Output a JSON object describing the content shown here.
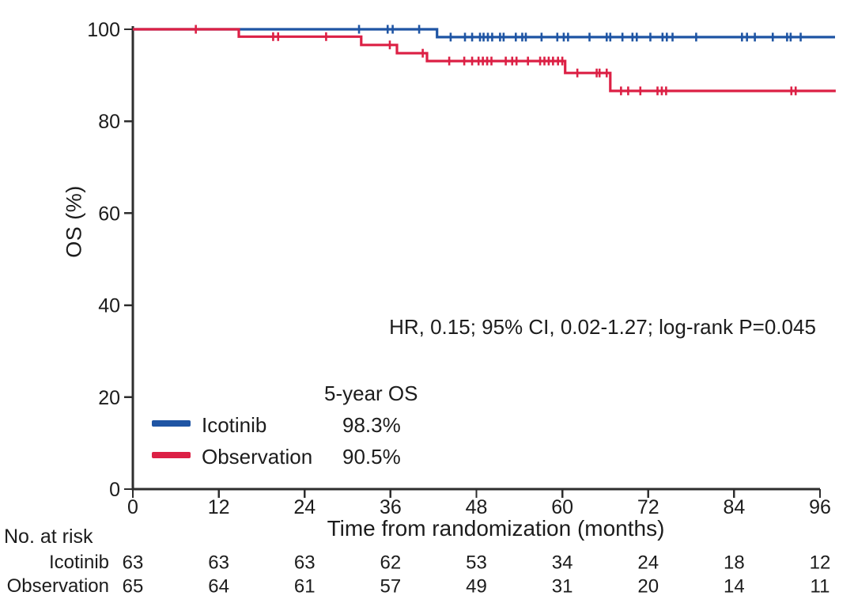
{
  "chart_data": {
    "type": "line",
    "subtype": "kaplan-meier-step-curve",
    "title": "",
    "xlabel": "Time from randomization (months)",
    "ylabel": "OS (%)",
    "xlim": [
      0,
      96
    ],
    "ylim": [
      0,
      100
    ],
    "x_ticks": [
      0,
      12,
      24,
      36,
      48,
      60,
      72,
      84,
      96
    ],
    "y_ticks": [
      0,
      20,
      40,
      60,
      80,
      100
    ],
    "grid": false,
    "annotation": "HR, 0.15; 95% CI, 0.02-1.27; log-rank P=0.045",
    "legend": {
      "position": "lower-left",
      "header": "5-year OS",
      "items": [
        {
          "name": "Icotinib",
          "value": "98.3%",
          "color": "#1f55a4"
        },
        {
          "name": "Observation",
          "value": "90.5%",
          "color": "#dc2045"
        }
      ]
    },
    "series": [
      {
        "name": "Icotinib",
        "color": "#1f55a4",
        "steps": [
          [
            0,
            100
          ],
          [
            42.5,
            100
          ],
          [
            42.5,
            98.3
          ],
          [
            98.1,
            98.3
          ]
        ],
        "censors": [
          [
            31.6,
            100
          ],
          [
            35.6,
            100
          ],
          [
            36.3,
            100
          ],
          [
            40.0,
            100
          ],
          [
            44.4,
            98.3
          ],
          [
            46.4,
            98.3
          ],
          [
            47.4,
            98.3
          ],
          [
            48.5,
            98.3
          ],
          [
            49.0,
            98.3
          ],
          [
            49.6,
            98.3
          ],
          [
            50.2,
            98.3
          ],
          [
            51.3,
            98.3
          ],
          [
            51.8,
            98.3
          ],
          [
            53.5,
            98.3
          ],
          [
            54.4,
            98.3
          ],
          [
            54.9,
            98.3
          ],
          [
            57.1,
            98.3
          ],
          [
            59.3,
            98.3
          ],
          [
            60.2,
            98.3
          ],
          [
            60.8,
            98.3
          ],
          [
            63.8,
            98.3
          ],
          [
            66.2,
            98.3
          ],
          [
            66.7,
            98.3
          ],
          [
            68.4,
            98.3
          ],
          [
            69.8,
            98.3
          ],
          [
            70.4,
            98.3
          ],
          [
            72.3,
            98.3
          ],
          [
            74.0,
            98.3
          ],
          [
            74.6,
            98.3
          ],
          [
            75.4,
            98.3
          ],
          [
            78.7,
            98.3
          ],
          [
            85.1,
            98.3
          ],
          [
            85.8,
            98.3
          ],
          [
            86.9,
            98.3
          ],
          [
            89.4,
            98.3
          ],
          [
            91.4,
            98.3
          ],
          [
            91.9,
            98.3
          ],
          [
            93.3,
            98.3
          ]
        ]
      },
      {
        "name": "Observation",
        "color": "#dc2045",
        "steps": [
          [
            0,
            100
          ],
          [
            14.8,
            100
          ],
          [
            14.8,
            98.4
          ],
          [
            31.9,
            98.4
          ],
          [
            31.9,
            96.6
          ],
          [
            36.9,
            96.6
          ],
          [
            36.9,
            94.8
          ],
          [
            41.1,
            94.8
          ],
          [
            41.1,
            93.1
          ],
          [
            60.4,
            93.1
          ],
          [
            60.4,
            90.5
          ],
          [
            66.7,
            90.5
          ],
          [
            66.7,
            86.6
          ],
          [
            98.2,
            86.6
          ]
        ],
        "censors": [
          [
            8.8,
            100
          ],
          [
            19.6,
            98.4
          ],
          [
            20.3,
            98.4
          ],
          [
            27.0,
            98.4
          ],
          [
            35.9,
            96.6
          ],
          [
            40.5,
            94.8
          ],
          [
            44.2,
            93.1
          ],
          [
            46.3,
            93.1
          ],
          [
            47.4,
            93.1
          ],
          [
            48.3,
            93.1
          ],
          [
            48.9,
            93.1
          ],
          [
            49.5,
            93.1
          ],
          [
            50.1,
            93.1
          ],
          [
            52.1,
            93.1
          ],
          [
            53.0,
            93.1
          ],
          [
            53.6,
            93.1
          ],
          [
            55.2,
            93.1
          ],
          [
            56.9,
            93.1
          ],
          [
            57.5,
            93.1
          ],
          [
            58.1,
            93.1
          ],
          [
            58.7,
            93.1
          ],
          [
            59.4,
            93.1
          ],
          [
            60.0,
            93.1
          ],
          [
            62.1,
            90.5
          ],
          [
            64.8,
            90.5
          ],
          [
            65.2,
            90.5
          ],
          [
            66.2,
            90.5
          ],
          [
            68.2,
            86.6
          ],
          [
            69.2,
            86.6
          ],
          [
            70.9,
            86.6
          ],
          [
            73.3,
            86.6
          ],
          [
            73.9,
            86.6
          ],
          [
            74.5,
            86.6
          ],
          [
            92.0,
            86.6
          ],
          [
            92.6,
            86.6
          ]
        ]
      }
    ],
    "risk_table": {
      "title": "No. at risk",
      "rows": [
        {
          "label": "Icotinib",
          "values": [
            63,
            63,
            63,
            62,
            53,
            34,
            24,
            18,
            12
          ]
        },
        {
          "label": "Observation",
          "values": [
            65,
            64,
            61,
            57,
            49,
            31,
            20,
            14,
            11
          ]
        }
      ]
    },
    "colors": {
      "axis": "#2e2e2e",
      "text": "#1c1c1c"
    }
  }
}
